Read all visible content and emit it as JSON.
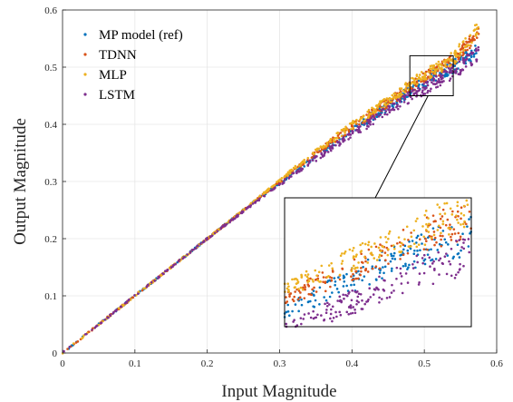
{
  "chart_data": {
    "type": "scatter",
    "title": "",
    "xlabel": "Input Magnitude",
    "ylabel": "Output Magnitude",
    "xlim": [
      0,
      0.6
    ],
    "ylim": [
      0,
      0.6
    ],
    "x_ticks": [
      "0",
      "0.1",
      "0.2",
      "0.3",
      "0.4",
      "0.5",
      "0.6"
    ],
    "y_ticks": [
      "0",
      "0.1",
      "0.2",
      "0.3",
      "0.4",
      "0.5",
      "0.6"
    ],
    "grid": true,
    "legend_position": "top-left",
    "series": [
      {
        "name": "MP model (ref)",
        "color": "#0072BD",
        "x": [
          0.0,
          0.05,
          0.1,
          0.15,
          0.2,
          0.25,
          0.3,
          0.35,
          0.4,
          0.45,
          0.48,
          0.5,
          0.52,
          0.54,
          0.575
        ],
        "y": [
          0.0,
          0.05,
          0.1,
          0.15,
          0.2,
          0.25,
          0.298,
          0.345,
          0.39,
          0.432,
          0.458,
          0.474,
          0.49,
          0.5,
          0.532
        ]
      },
      {
        "name": "TDNN",
        "color": "#D95319",
        "x": [
          0.0,
          0.05,
          0.1,
          0.15,
          0.2,
          0.25,
          0.3,
          0.35,
          0.4,
          0.45,
          0.48,
          0.5,
          0.52,
          0.54,
          0.575
        ],
        "y": [
          0.0,
          0.05,
          0.1,
          0.15,
          0.2,
          0.25,
          0.3,
          0.35,
          0.395,
          0.438,
          0.465,
          0.48,
          0.496,
          0.51,
          0.56
        ]
      },
      {
        "name": "MLP",
        "color": "#EDB120",
        "x": [
          0.0,
          0.05,
          0.1,
          0.15,
          0.2,
          0.25,
          0.3,
          0.35,
          0.4,
          0.45,
          0.48,
          0.5,
          0.52,
          0.54,
          0.575
        ],
        "y": [
          0.0,
          0.05,
          0.1,
          0.15,
          0.2,
          0.25,
          0.302,
          0.352,
          0.398,
          0.442,
          0.47,
          0.485,
          0.5,
          0.515,
          0.568
        ]
      },
      {
        "name": "LSTM",
        "color": "#7E2F8E",
        "x": [
          0.0,
          0.05,
          0.1,
          0.15,
          0.2,
          0.25,
          0.3,
          0.35,
          0.4,
          0.45,
          0.48,
          0.5,
          0.52,
          0.54,
          0.575
        ],
        "y": [
          0.0,
          0.05,
          0.1,
          0.15,
          0.2,
          0.248,
          0.295,
          0.34,
          0.382,
          0.425,
          0.448,
          0.462,
          0.478,
          0.49,
          0.525
        ]
      }
    ],
    "inset": {
      "xlim": [
        0.48,
        0.54
      ],
      "ylim": [
        0.45,
        0.52
      ],
      "box_on_main": [
        0.48,
        0.54,
        0.45,
        0.52
      ]
    }
  }
}
